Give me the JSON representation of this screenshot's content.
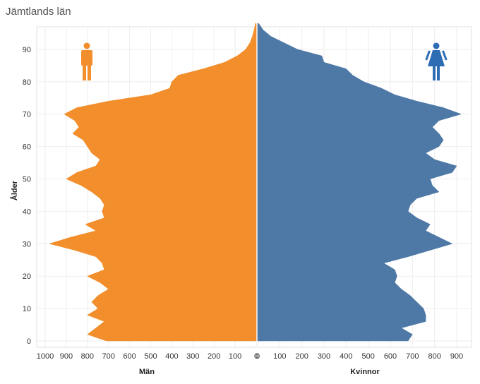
{
  "title": "Jämtlands län",
  "chart_data": {
    "type": "population-pyramid",
    "title": "Jämtlands län",
    "ylabel": "Ålder",
    "ylim": [
      -1,
      98
    ],
    "yticks": [
      0,
      10,
      20,
      30,
      40,
      50,
      60,
      70,
      80,
      90
    ],
    "male": {
      "name": "Män",
      "color": "#F28E2B",
      "xlim": [
        0,
        1050
      ],
      "xticks": [
        1000,
        900,
        800,
        700,
        600,
        500,
        400,
        300,
        200,
        100,
        0
      ],
      "ages": [
        0,
        2,
        4,
        6,
        8,
        10,
        12,
        14,
        16,
        18,
        20,
        22,
        24,
        26,
        28,
        30,
        32,
        34,
        36,
        38,
        40,
        42,
        44,
        46,
        48,
        50,
        52,
        54,
        56,
        58,
        60,
        62,
        64,
        66,
        68,
        70,
        72,
        74,
        76,
        78,
        80,
        82,
        84,
        86,
        88,
        90,
        92,
        94,
        96,
        98
      ],
      "values": [
        710,
        800,
        760,
        720,
        800,
        750,
        780,
        750,
        700,
        740,
        800,
        720,
        730,
        760,
        860,
        980,
        880,
        760,
        810,
        720,
        730,
        720,
        740,
        780,
        830,
        900,
        850,
        760,
        740,
        780,
        800,
        820,
        870,
        840,
        860,
        910,
        850,
        700,
        500,
        410,
        400,
        370,
        250,
        150,
        90,
        50,
        30,
        18,
        10,
        4
      ]
    },
    "female": {
      "name": "Kvinnor",
      "color": "#4E79A7",
      "xlim": [
        0,
        960
      ],
      "xticks": [
        0,
        100,
        200,
        300,
        400,
        500,
        600,
        700,
        800,
        900
      ],
      "ages": [
        0,
        2,
        4,
        6,
        8,
        10,
        12,
        14,
        16,
        18,
        20,
        22,
        24,
        26,
        28,
        30,
        32,
        34,
        36,
        38,
        40,
        42,
        44,
        46,
        48,
        50,
        52,
        54,
        56,
        58,
        60,
        62,
        64,
        66,
        68,
        70,
        72,
        74,
        76,
        78,
        80,
        82,
        84,
        86,
        88,
        90,
        92,
        94,
        96,
        98
      ],
      "values": [
        680,
        700,
        650,
        760,
        760,
        750,
        720,
        690,
        650,
        620,
        630,
        620,
        570,
        680,
        780,
        880,
        820,
        760,
        780,
        720,
        680,
        690,
        720,
        820,
        790,
        780,
        880,
        900,
        800,
        760,
        820,
        840,
        820,
        790,
        820,
        920,
        840,
        720,
        620,
        560,
        480,
        430,
        400,
        300,
        290,
        180,
        120,
        60,
        25,
        5
      ]
    }
  }
}
